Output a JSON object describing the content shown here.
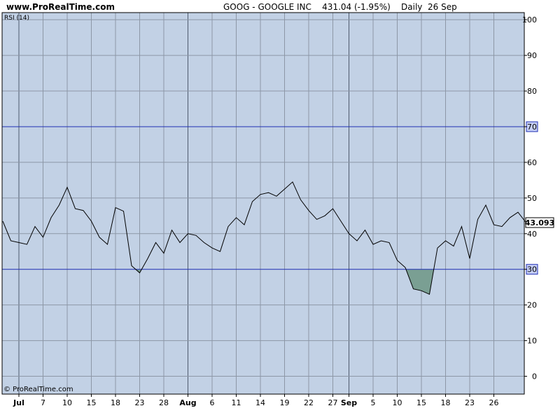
{
  "header": {
    "site": "www.ProRealTime.com",
    "title": "GOOG - GOOGLE INC    431.04 (-1.95%)    Daily  26 Sep"
  },
  "footer": {
    "copyright": "© ProRealTime.com"
  },
  "colors": {
    "background": "#c2d1e5",
    "grid_minor": "#8d97a6",
    "grid_major": "#4f5b6e",
    "level_line": "#1f2fb4",
    "fill": "#7a9f93",
    "line": "#000000"
  },
  "chart_data": {
    "type": "line",
    "indicator_label": "RSI (14)",
    "ylim": [
      -5,
      102
    ],
    "y_ticks": [
      0,
      10,
      20,
      30,
      40,
      50,
      60,
      70,
      80,
      90,
      100
    ],
    "level_lines": [
      70,
      30
    ],
    "level_labels": [
      "70",
      "30"
    ],
    "current_value_label": "43.093",
    "x_ticks": [
      {
        "label": "Jul",
        "i": 2,
        "month": true
      },
      {
        "label": "7",
        "i": 5
      },
      {
        "label": "10",
        "i": 8
      },
      {
        "label": "15",
        "i": 11
      },
      {
        "label": "18",
        "i": 14
      },
      {
        "label": "23",
        "i": 17
      },
      {
        "label": "28",
        "i": 20
      },
      {
        "label": "Aug",
        "i": 23,
        "month": true
      },
      {
        "label": "6",
        "i": 26
      },
      {
        "label": "11",
        "i": 29
      },
      {
        "label": "14",
        "i": 32
      },
      {
        "label": "19",
        "i": 35
      },
      {
        "label": "22",
        "i": 38
      },
      {
        "label": "27",
        "i": 41
      },
      {
        "label": "Sep",
        "i": 43,
        "month": true
      },
      {
        "label": "5",
        "i": 46
      },
      {
        "label": "10",
        "i": 49
      },
      {
        "label": "15",
        "i": 52
      },
      {
        "label": "18",
        "i": 55
      },
      {
        "label": "23",
        "i": 58
      },
      {
        "label": "26",
        "i": 61
      }
    ],
    "values": [
      43.5,
      38,
      37.5,
      37,
      42,
      39,
      44.5,
      48,
      53,
      47,
      46.5,
      43.5,
      39,
      37,
      47.3,
      46.3,
      31,
      29,
      33,
      37.5,
      34.5,
      41,
      37.5,
      40,
      39.5,
      37.5,
      36,
      35,
      42,
      44.5,
      42.5,
      49,
      51,
      51.5,
      50.5,
      52.5,
      54.5,
      49.5,
      46.5,
      44,
      45,
      47,
      43.5,
      40,
      38,
      41,
      37,
      38,
      37.5,
      32.5,
      30.5,
      24.5,
      24,
      23,
      36,
      38,
      36.5,
      42,
      33,
      44,
      48,
      42.5,
      42,
      44.5,
      46,
      43.1
    ]
  }
}
